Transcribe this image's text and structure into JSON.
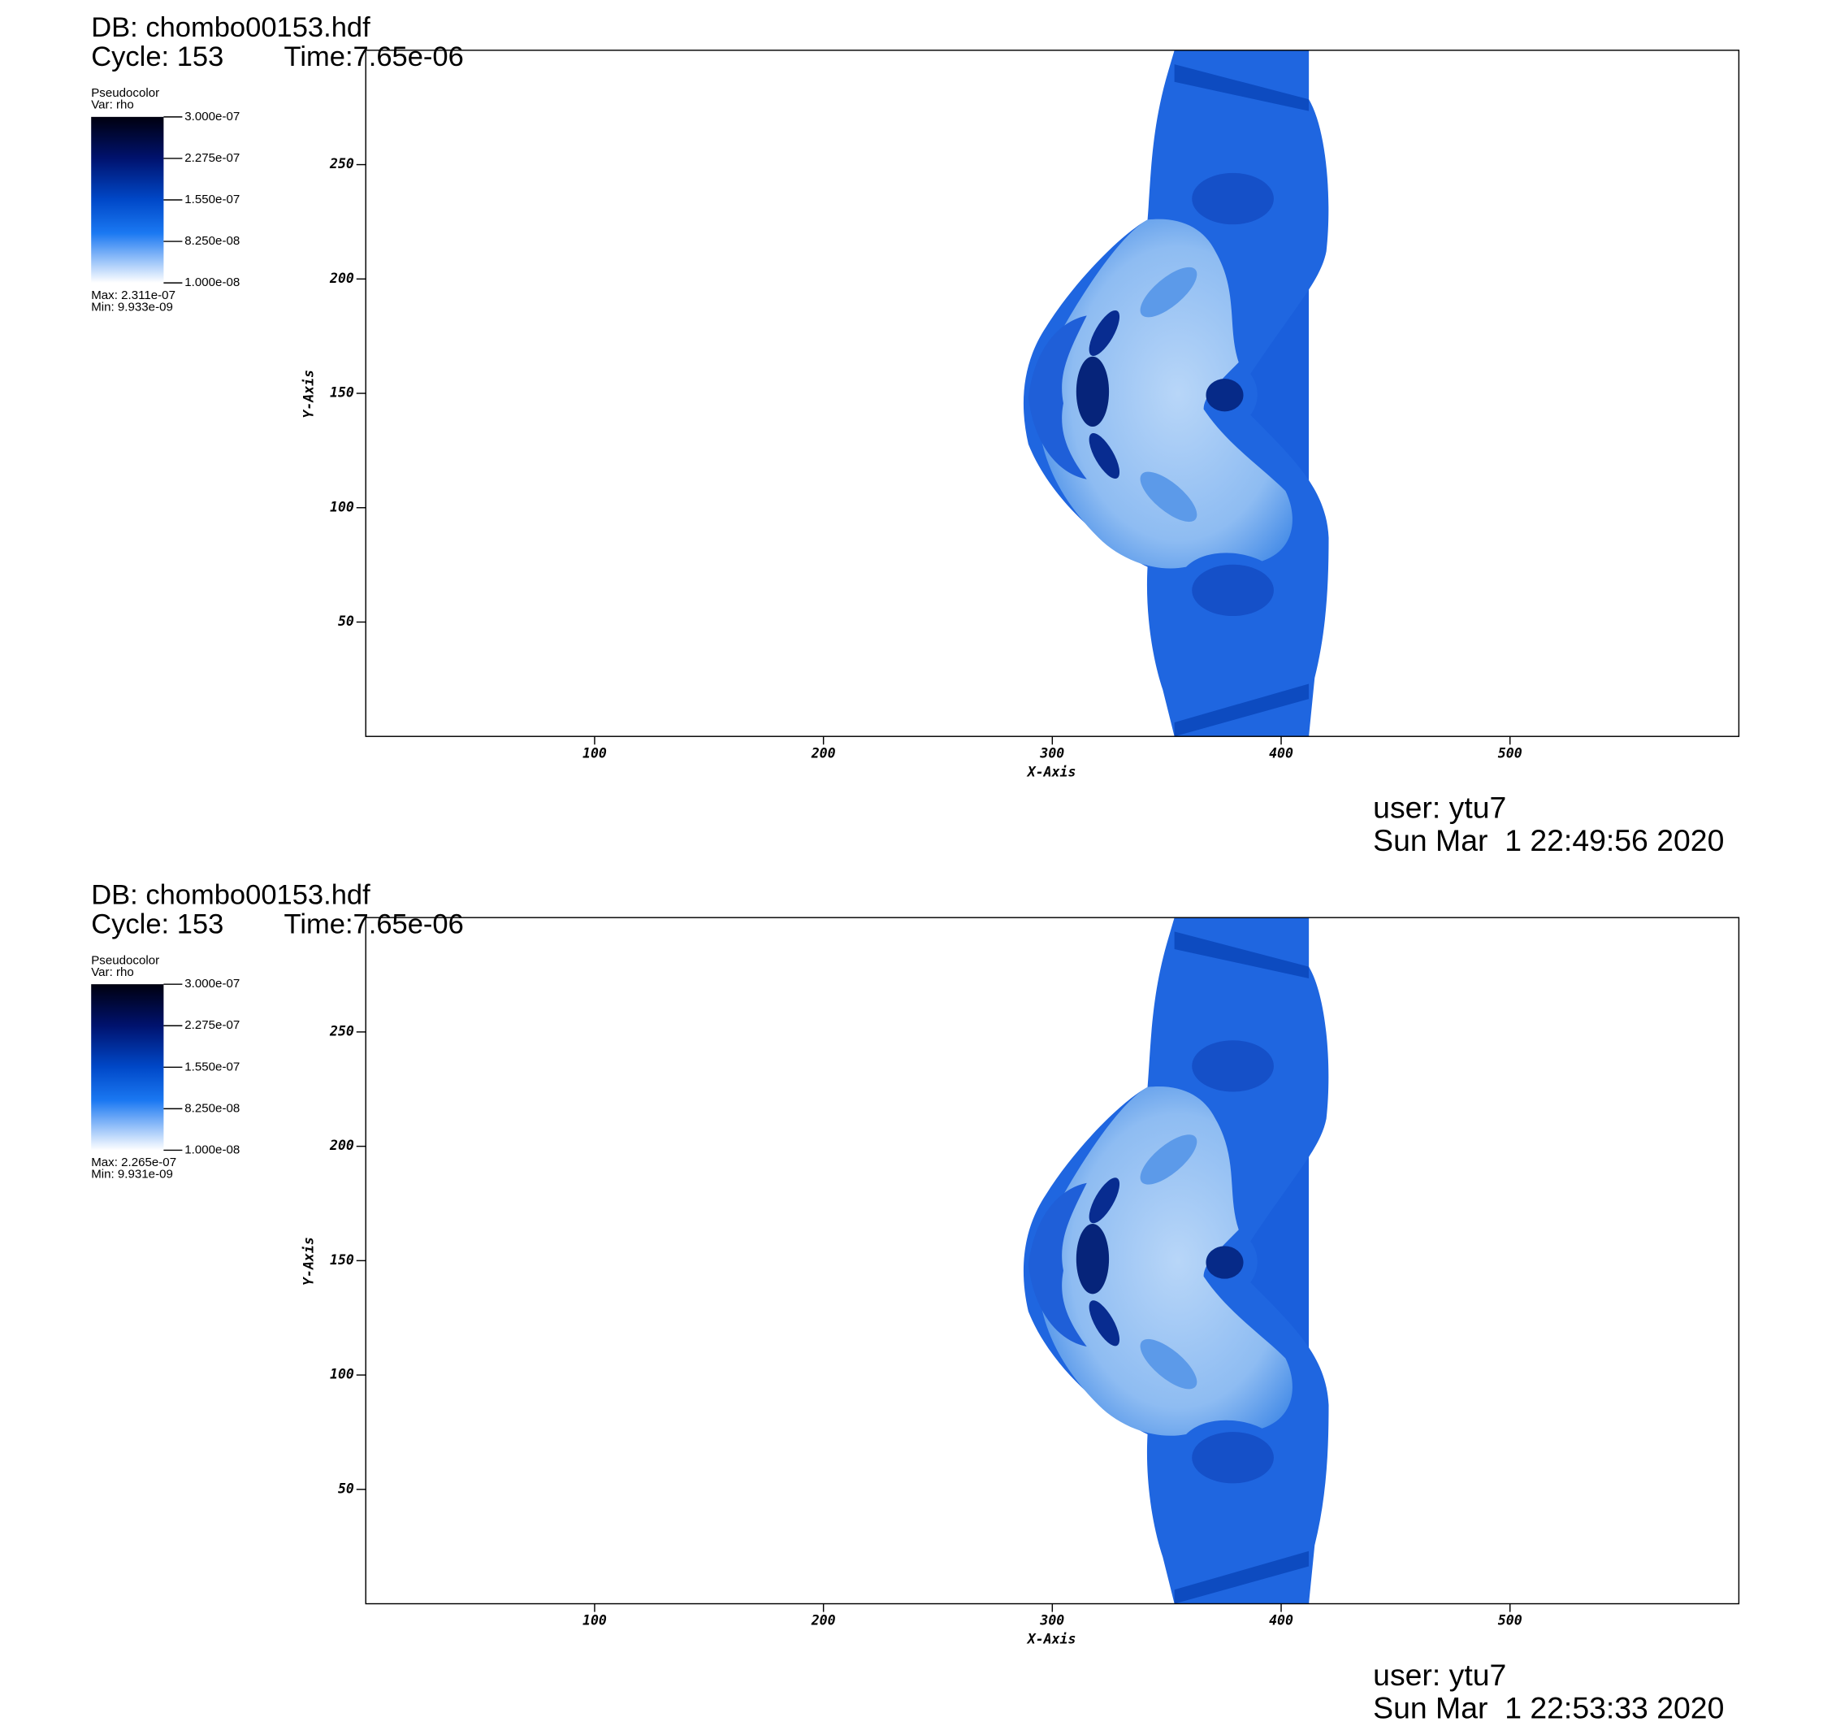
{
  "panels": [
    {
      "db": "DB: chombo00153.hdf",
      "cycle": "Cycle: 153",
      "time": "Time:7.65e-06",
      "legend": {
        "plot": "Pseudocolor",
        "var": "Var: rho",
        "ticks": [
          "3.000e-07",
          "2.275e-07",
          "1.550e-07",
          "8.250e-08",
          "1.000e-08"
        ],
        "max": "Max: 2.311e-07",
        "min": "Min: 9.933e-09"
      },
      "axes": {
        "x_label": "X-Axis",
        "xlim": [
          0,
          600
        ],
        "xticks": [
          100,
          200,
          300,
          400,
          500
        ],
        "y_label": "Y-Axis",
        "ylim": [
          0,
          300
        ],
        "yticks": [
          50,
          100,
          150,
          200,
          250
        ]
      },
      "user": "user: ytu7",
      "date": "Sun Mar  1 22:49:56 2020"
    },
    {
      "db": "DB: chombo00153.hdf",
      "cycle": "Cycle: 153",
      "time": "Time:7.65e-06",
      "legend": {
        "plot": "Pseudocolor",
        "var": "Var: rho",
        "ticks": [
          "3.000e-07",
          "2.275e-07",
          "1.550e-07",
          "8.250e-08",
          "1.000e-08"
        ],
        "max": "Max: 2.265e-07",
        "min": "Min: 9.931e-09"
      },
      "axes": {
        "x_label": "X-Axis",
        "xlim": [
          0,
          600
        ],
        "xticks": [
          100,
          200,
          300,
          400,
          500
        ],
        "y_label": "Y-Axis",
        "ylim": [
          0,
          300
        ],
        "yticks": [
          50,
          100,
          150,
          200,
          250
        ]
      },
      "user": "user: ytu7",
      "date": "Sun Mar  1 22:53:33 2020"
    }
  ]
}
